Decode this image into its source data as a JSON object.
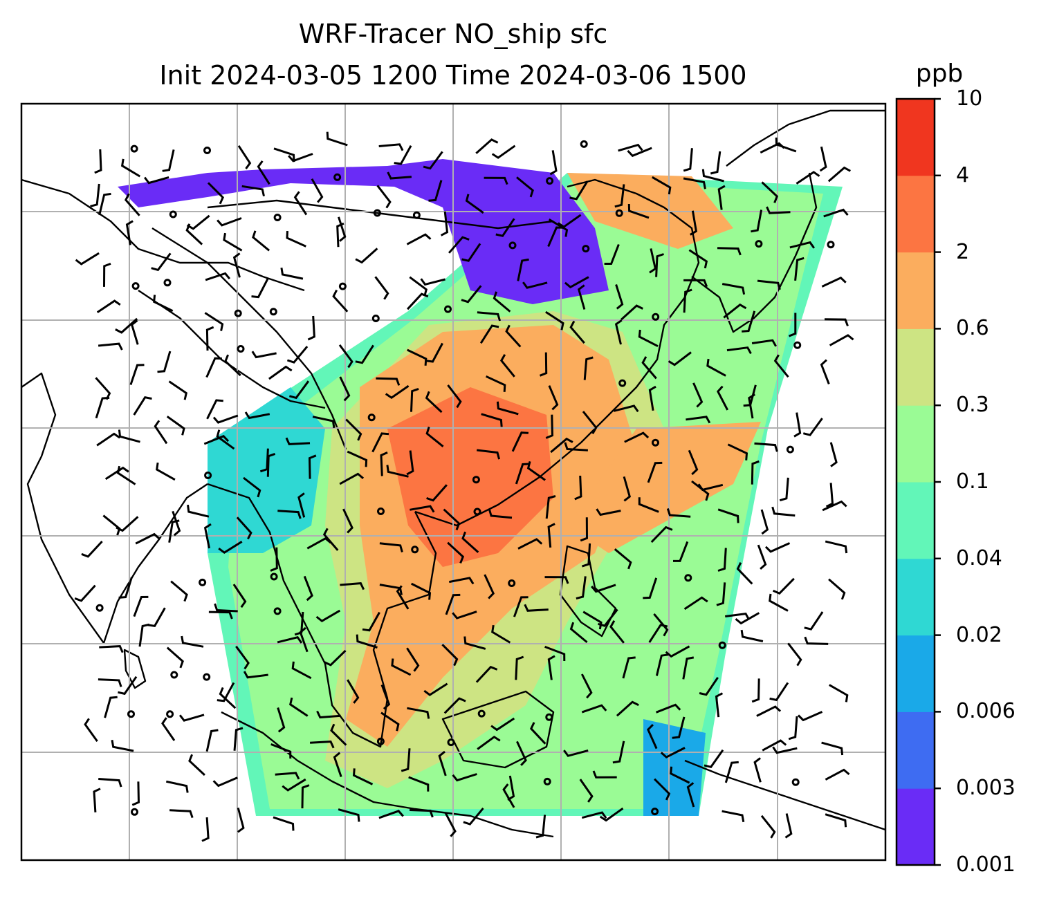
{
  "title": {
    "line1": "WRF-Tracer NO_ship sfc",
    "line2": "Init 2024-03-05 1200 Time 2024-03-06 1500"
  },
  "colorbar": {
    "units": "ppb",
    "ticks": [
      "0.001",
      "0.003",
      "0.006",
      "0.02",
      "0.04",
      "0.1",
      "0.3",
      "0.6",
      "2",
      "4",
      "10"
    ],
    "colors": [
      "#6a2cf6",
      "#3e6cf2",
      "#1aa9e8",
      "#2fd8d3",
      "#62f6b8",
      "#9afb95",
      "#cde483",
      "#fbad5e",
      "#fc7542",
      "#f0361f"
    ]
  }
}
